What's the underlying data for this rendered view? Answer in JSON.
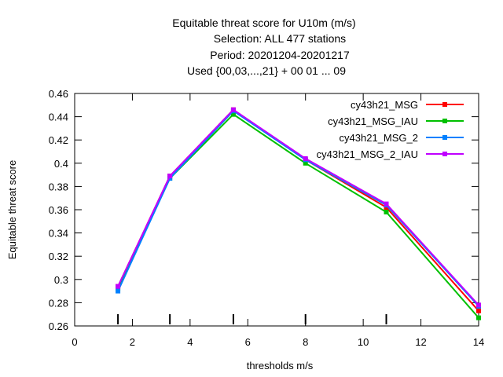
{
  "chart_data": {
    "type": "line",
    "title_lines": [
      "Equitable threat score  for U10m (m/s)",
      "Selection: ALL    477 stations",
      "Period: 20201204-20201217",
      "Used {00,03,...,21} + 00 01 ... 09"
    ],
    "xlabel": "thresholds m/s",
    "ylabel": "Equitable threat score",
    "xlim": [
      0,
      14
    ],
    "ylim": [
      0.26,
      0.46
    ],
    "xticks": [
      0,
      2,
      4,
      6,
      8,
      10,
      12,
      14
    ],
    "yticks": [
      0.26,
      0.28,
      0.3,
      0.32,
      0.34,
      0.36,
      0.38,
      0.4,
      0.42,
      0.44,
      0.46
    ],
    "ytick_labels": [
      "0.26",
      "0.28",
      "0.3",
      "0.32",
      "0.34",
      "0.36",
      "0.38",
      "0.4",
      "0.42",
      "0.44",
      "0.46"
    ],
    "grid": false,
    "legend_position": "top-right",
    "x": [
      1.5,
      3.3,
      5.5,
      8.0,
      10.8,
      14.0
    ],
    "threshold_markers": [
      1.5,
      3.3,
      5.5,
      8.0,
      10.8
    ],
    "series": [
      {
        "name": "cy43h21_MSG",
        "color": "#ff0000",
        "values": [
          0.294,
          0.389,
          0.446,
          0.403,
          0.362,
          0.273
        ]
      },
      {
        "name": "cy43h21_MSG_IAU",
        "color": "#00c000",
        "values": [
          0.292,
          0.387,
          0.442,
          0.4,
          0.358,
          0.267
        ]
      },
      {
        "name": "cy43h21_MSG_2",
        "color": "#0080ff",
        "values": [
          0.29,
          0.387,
          0.445,
          0.403,
          0.364,
          0.277
        ]
      },
      {
        "name": "cy43h21_MSG_2_IAU",
        "color": "#c000ff",
        "values": [
          0.294,
          0.389,
          0.446,
          0.404,
          0.365,
          0.278
        ]
      }
    ]
  }
}
